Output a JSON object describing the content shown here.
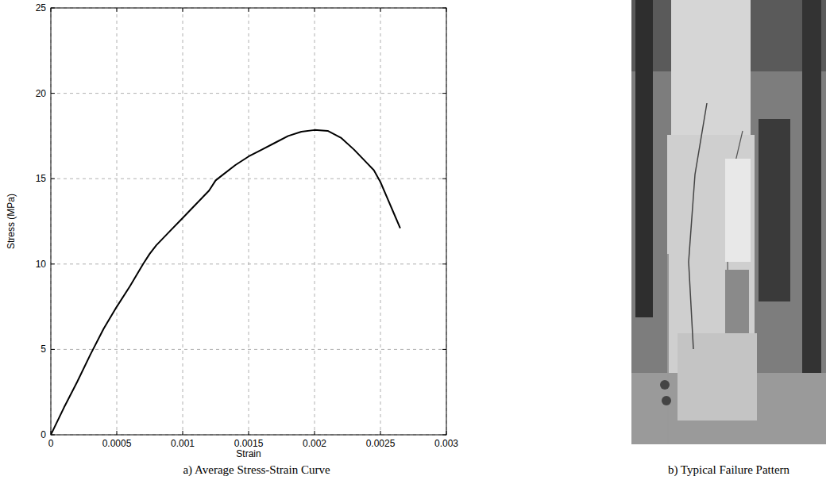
{
  "chart_data": {
    "type": "line",
    "title": "a) Average Stress-Strain Curve",
    "x_label": "Strain",
    "y_label": "Stress (MPa)",
    "x": [
      0,
      0.0001,
      0.0002,
      0.0003,
      0.0004,
      0.0005,
      0.0006,
      0.0007,
      0.00075,
      0.0008,
      0.0009,
      0.001,
      0.0011,
      0.0012,
      0.00125,
      0.0013,
      0.0014,
      0.0015,
      0.0016,
      0.0017,
      0.0018,
      0.0019,
      0.002,
      0.0021,
      0.0022,
      0.0023,
      0.0024,
      0.00245,
      0.0025,
      0.00255,
      0.0026,
      0.00265
    ],
    "values": [
      0,
      1.6,
      3.1,
      4.7,
      6.2,
      7.5,
      8.7,
      10.0,
      10.6,
      11.1,
      11.9,
      12.7,
      13.5,
      14.3,
      14.9,
      15.2,
      15.8,
      16.3,
      16.7,
      17.1,
      17.5,
      17.75,
      17.85,
      17.8,
      17.4,
      16.7,
      15.9,
      15.5,
      14.8,
      13.9,
      13.0,
      12.1
    ],
    "color": "#000000",
    "xlim": [
      0,
      0.003
    ],
    "xticks": [
      0,
      0.0005,
      0.001,
      0.0015,
      0.002,
      0.0025,
      0.003
    ],
    "ylim": [
      0,
      25
    ],
    "yticks": [
      0,
      5,
      10,
      15,
      20,
      25
    ],
    "grid": true
  },
  "figure_b": {
    "caption": "b) Typical Failure Pattern"
  }
}
